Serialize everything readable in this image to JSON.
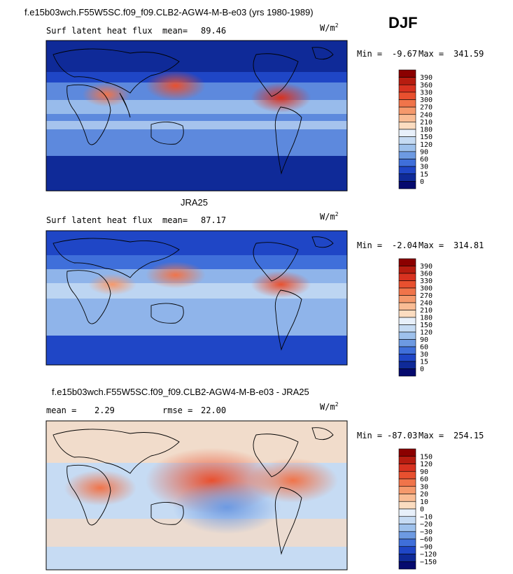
{
  "header": {
    "case_title": "f.e15b03wch.F55W5SC.f09_f09.CLB2-AGW4-M-B-e03 (yrs 1980-1989)",
    "season": "DJF"
  },
  "chart_data": [
    {
      "type": "heatmap",
      "title": "f.e15b03wch.F55W5SC.f09_f09.CLB2-AGW4-M-B-e03 (yrs 1980-1989)",
      "variable": "Surf latent heat flux",
      "mean_label": "mean=",
      "mean": "89.46",
      "units": "W/m",
      "units_exp": "2",
      "min_label": "Min =",
      "min": "-9.67",
      "max_label": "Max =",
      "max": "341.59",
      "colorbar_levels": [
        "390",
        "360",
        "330",
        "300",
        "270",
        "240",
        "210",
        "180",
        "150",
        "120",
        "90",
        "60",
        "30",
        "15",
        "0"
      ],
      "colorbar_colors": [
        "#8b0000",
        "#b71c10",
        "#d83220",
        "#e8502f",
        "#f0744a",
        "#f5996c",
        "#f9bc94",
        "#fbdcc0",
        "#e8f0fa",
        "#c6dbf3",
        "#9ec1ec",
        "#6d9ae2",
        "#3f6fda",
        "#1f46c6",
        "#0f2a98",
        "#050a6e"
      ]
    },
    {
      "type": "heatmap",
      "title": "JRA25",
      "variable": "Surf latent heat flux",
      "mean_label": "mean=",
      "mean": "87.17",
      "units": "W/m",
      "units_exp": "2",
      "min_label": "Min =",
      "min": "-2.04",
      "max_label": "Max =",
      "max": "314.81",
      "colorbar_levels": [
        "390",
        "360",
        "330",
        "300",
        "270",
        "240",
        "210",
        "180",
        "150",
        "120",
        "90",
        "60",
        "30",
        "15",
        "0"
      ],
      "colorbar_colors": [
        "#8b0000",
        "#b71c10",
        "#d83220",
        "#e8502f",
        "#f0744a",
        "#f5996c",
        "#f9bc94",
        "#fbdcc0",
        "#e8f0fa",
        "#c6dbf3",
        "#9ec1ec",
        "#6d9ae2",
        "#3f6fda",
        "#1f46c6",
        "#0f2a98",
        "#050a6e"
      ]
    },
    {
      "type": "heatmap",
      "title": "f.e15b03wch.F55W5SC.f09_f09.CLB2-AGW4-M-B-e03 - JRA25",
      "mean_label": "mean =",
      "mean": "2.29",
      "rmse_label": "rmse =",
      "rmse": "22.00",
      "units": "W/m",
      "units_exp": "2",
      "min_label": "Min =",
      "min": "-87.03",
      "max_label": "Max =",
      "max": "254.15",
      "colorbar_levels": [
        "150",
        "120",
        "90",
        "60",
        "30",
        "20",
        "10",
        "0",
        "−10",
        "−20",
        "−30",
        "−60",
        "−90",
        "−120",
        "−150"
      ],
      "colorbar_colors": [
        "#8b0000",
        "#b71c10",
        "#d83220",
        "#e8502f",
        "#f0744a",
        "#f5996c",
        "#f9bc94",
        "#fbdcc0",
        "#e8f0fa",
        "#c6dbf3",
        "#9ec1ec",
        "#6d9ae2",
        "#3f6fda",
        "#1f46c6",
        "#0f2a98",
        "#050a6e"
      ]
    }
  ]
}
